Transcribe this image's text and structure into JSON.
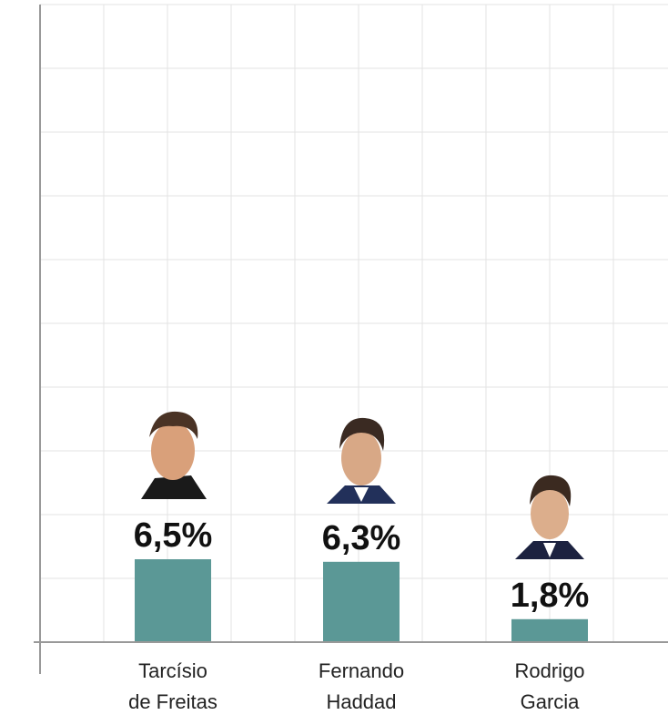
{
  "chart_data": {
    "type": "bar",
    "categories": [
      "Tarcísio de Freitas",
      "Fernando Haddad",
      "Rodrigo Garcia"
    ],
    "values": [
      6.5,
      6.3,
      1.8
    ],
    "value_labels": [
      "6,5%",
      "6,3%",
      "1,8%"
    ],
    "color": "#5b9896",
    "ylim": [
      0,
      50
    ],
    "yticks": [
      0,
      5,
      10,
      15,
      20,
      25,
      30,
      35,
      40,
      45,
      50
    ],
    "grid": true
  }
}
